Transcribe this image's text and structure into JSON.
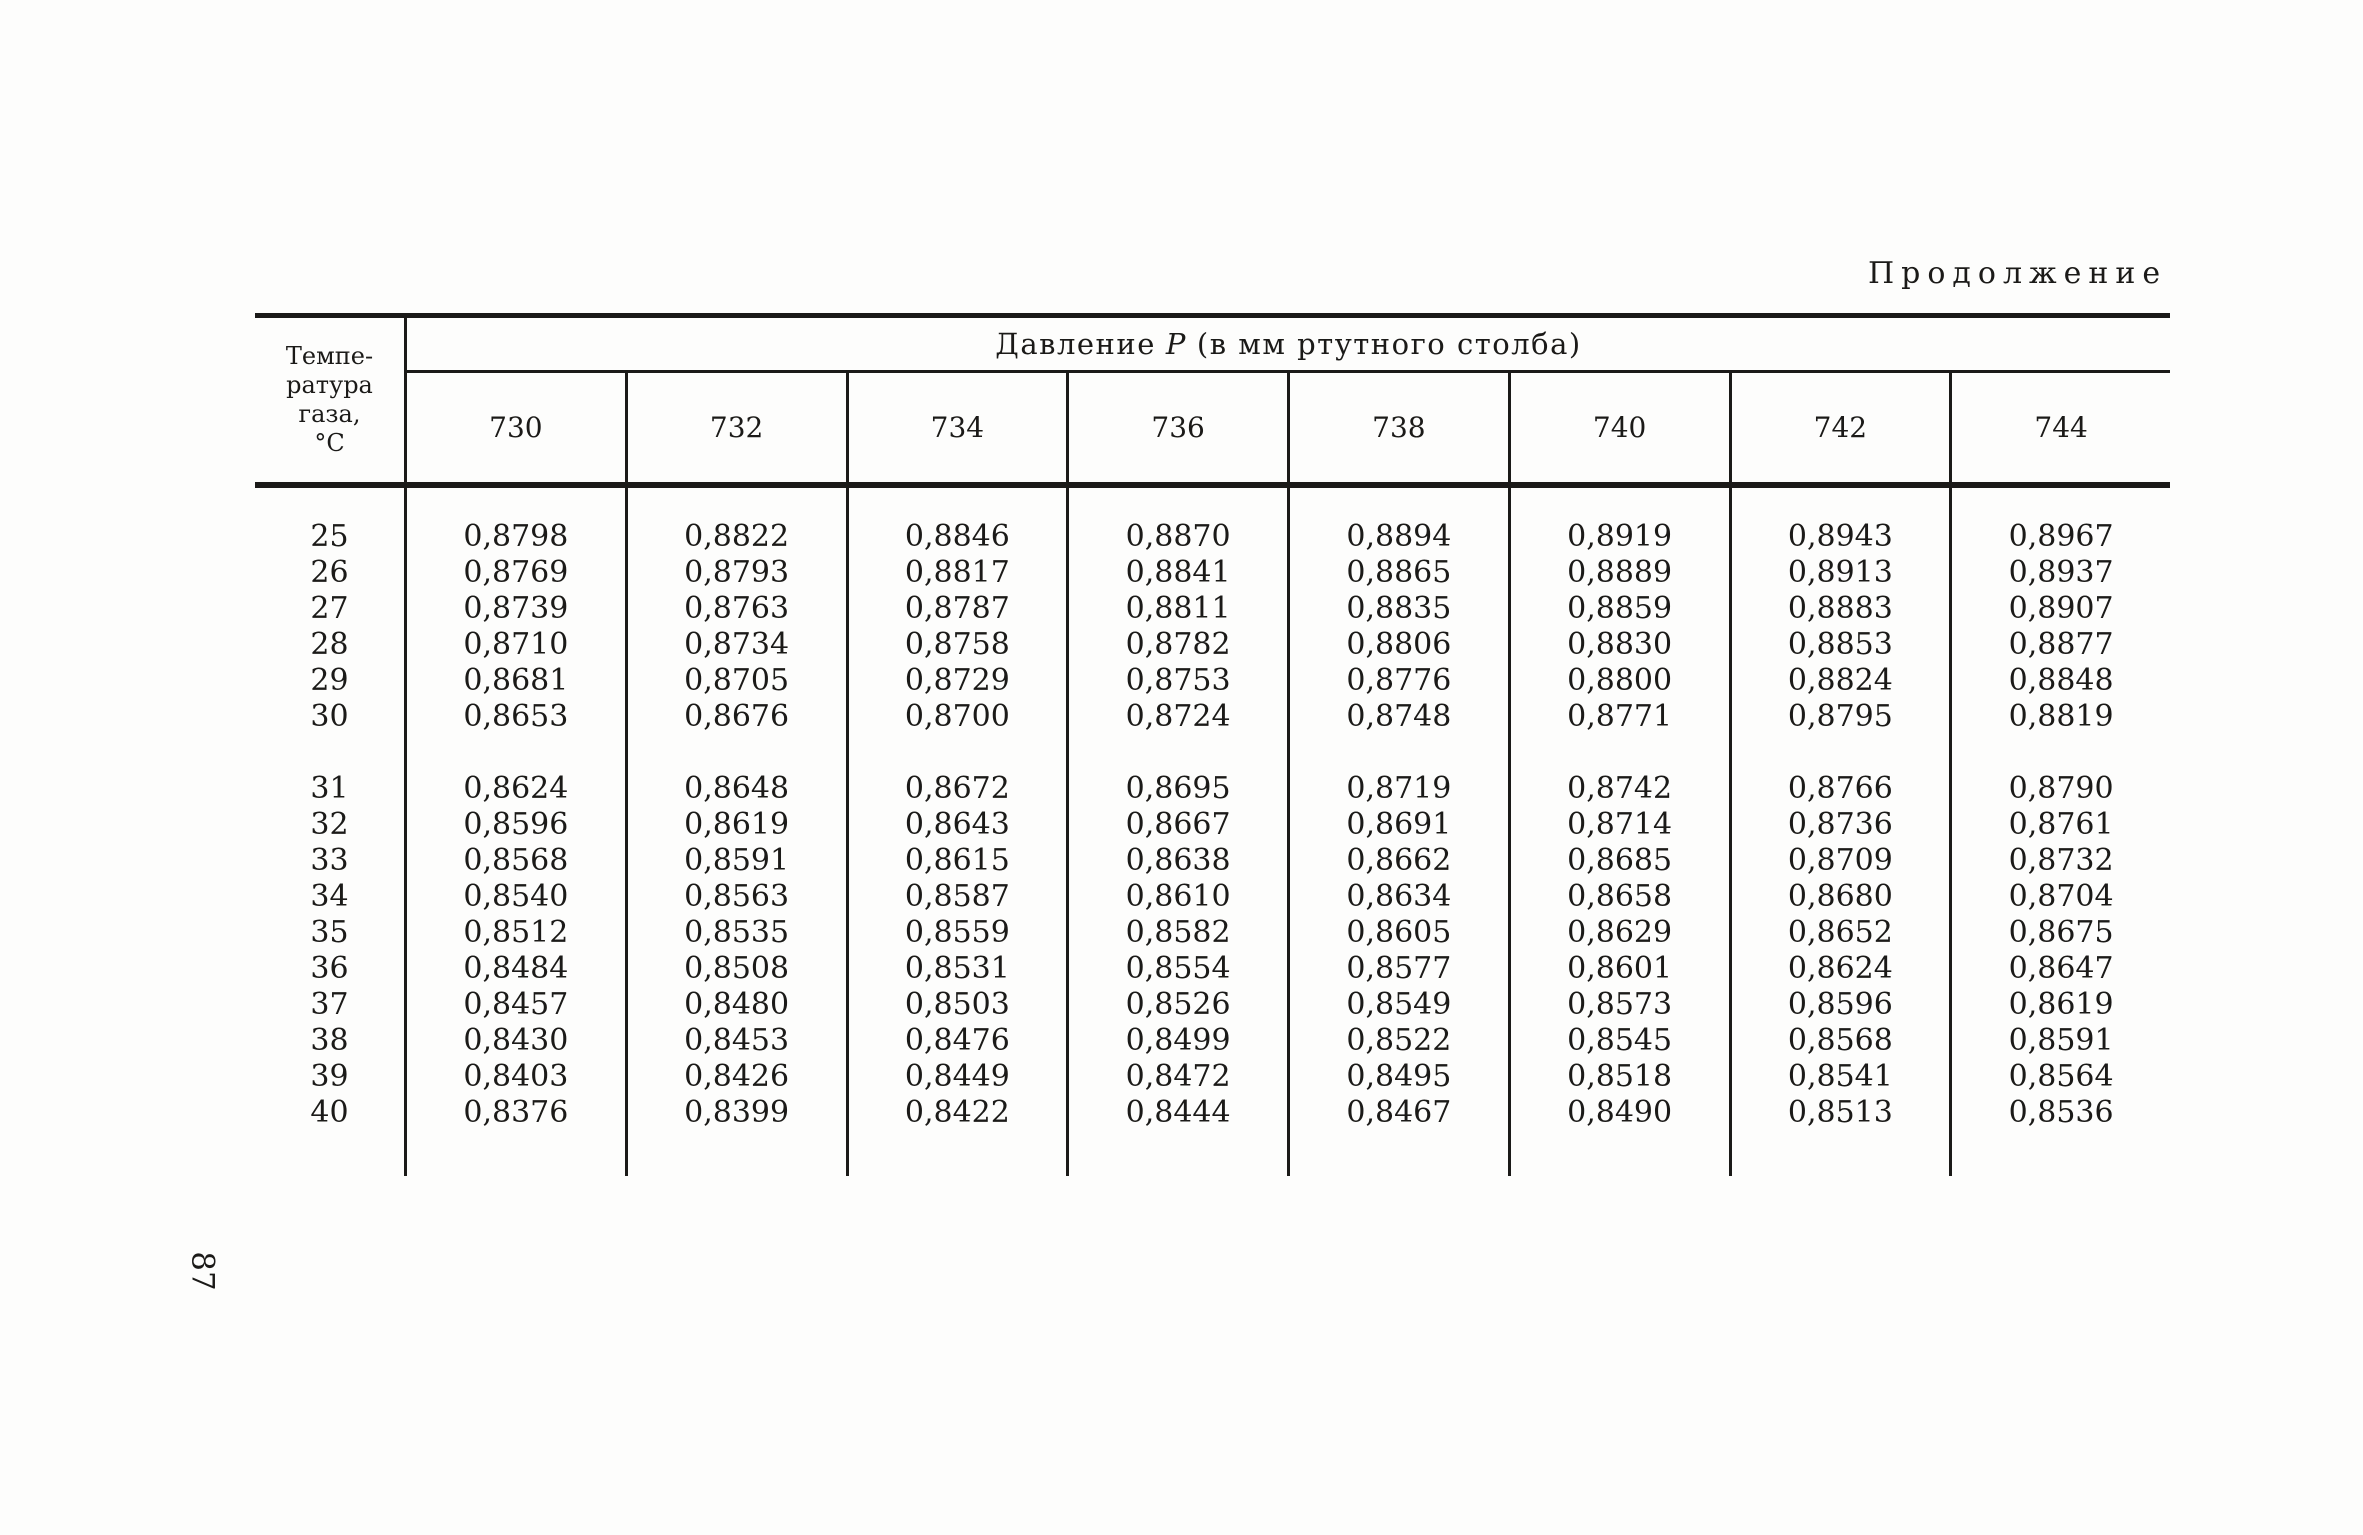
{
  "page": {
    "continuation_label": "Продолжение",
    "page_number": "87"
  },
  "table": {
    "temp_header_lines": [
      "Темпе-",
      "ратура",
      "газа,",
      "°С"
    ],
    "pressure_header": {
      "prefix": "Давление",
      "symbol": "Р",
      "suffix": "(в мм ртутного столба)"
    },
    "columns": [
      "730",
      "732",
      "734",
      "736",
      "738",
      "740",
      "742",
      "744"
    ],
    "row_groups": [
      {
        "rows": [
          {
            "temp": "25",
            "values": [
              "0,8798",
              "0,8822",
              "0,8846",
              "0,8870",
              "0,8894",
              "0,8919",
              "0,8943",
              "0,8967"
            ]
          },
          {
            "temp": "26",
            "values": [
              "0,8769",
              "0,8793",
              "0,8817",
              "0,8841",
              "0,8865",
              "0,8889",
              "0,8913",
              "0,8937"
            ]
          },
          {
            "temp": "27",
            "values": [
              "0,8739",
              "0,8763",
              "0,8787",
              "0,8811",
              "0,8835",
              "0,8859",
              "0,8883",
              "0,8907"
            ]
          },
          {
            "temp": "28",
            "values": [
              "0,8710",
              "0,8734",
              "0,8758",
              "0,8782",
              "0,8806",
              "0,8830",
              "0,8853",
              "0,8877"
            ]
          },
          {
            "temp": "29",
            "values": [
              "0,8681",
              "0,8705",
              "0,8729",
              "0,8753",
              "0,8776",
              "0,8800",
              "0,8824",
              "0,8848"
            ]
          },
          {
            "temp": "30",
            "values": [
              "0,8653",
              "0,8676",
              "0,8700",
              "0,8724",
              "0,8748",
              "0,8771",
              "0,8795",
              "0,8819"
            ]
          }
        ]
      },
      {
        "rows": [
          {
            "temp": "31",
            "values": [
              "0,8624",
              "0,8648",
              "0,8672",
              "0,8695",
              "0,8719",
              "0,8742",
              "0,8766",
              "0,8790"
            ]
          },
          {
            "temp": "32",
            "values": [
              "0,8596",
              "0,8619",
              "0,8643",
              "0,8667",
              "0,8691",
              "0,8714",
              "0,8736",
              "0,8761"
            ]
          },
          {
            "temp": "33",
            "values": [
              "0,8568",
              "0,8591",
              "0,8615",
              "0,8638",
              "0,8662",
              "0,8685",
              "0,8709",
              "0,8732"
            ]
          },
          {
            "temp": "34",
            "values": [
              "0,8540",
              "0,8563",
              "0,8587",
              "0,8610",
              "0,8634",
              "0,8658",
              "0,8680",
              "0,8704"
            ]
          },
          {
            "temp": "35",
            "values": [
              "0,8512",
              "0,8535",
              "0,8559",
              "0,8582",
              "0,8605",
              "0,8629",
              "0,8652",
              "0,8675"
            ]
          },
          {
            "temp": "36",
            "values": [
              "0,8484",
              "0,8508",
              "0,8531",
              "0,8554",
              "0,8577",
              "0,8601",
              "0,8624",
              "0,8647"
            ]
          },
          {
            "temp": "37",
            "values": [
              "0,8457",
              "0,8480",
              "0,8503",
              "0,8526",
              "0,8549",
              "0,8573",
              "0,8596",
              "0,8619"
            ]
          },
          {
            "temp": "38",
            "values": [
              "0,8430",
              "0,8453",
              "0,8476",
              "0,8499",
              "0,8522",
              "0,8545",
              "0,8568",
              "0,8591"
            ]
          },
          {
            "temp": "39",
            "values": [
              "0,8403",
              "0,8426",
              "0,8449",
              "0,8472",
              "0,8495",
              "0,8518",
              "0,8541",
              "0,8564"
            ]
          },
          {
            "temp": "40",
            "values": [
              "0,8376",
              "0,8399",
              "0,8422",
              "0,8444",
              "0,8467",
              "0,8490",
              "0,8513",
              "0,8536"
            ]
          }
        ]
      }
    ]
  }
}
